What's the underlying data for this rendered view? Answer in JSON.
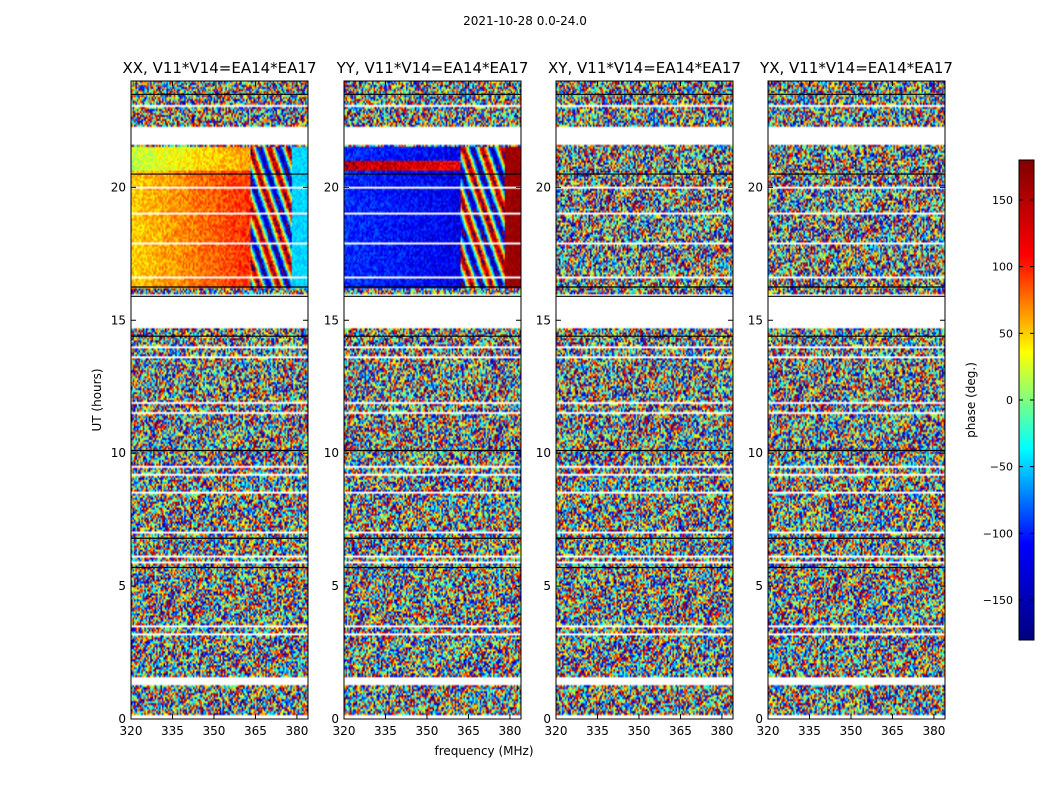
{
  "chart_data": {
    "type": "heatmap",
    "suptitle": "2021-10-28 0.0-24.0",
    "xlabel": "frequency (MHz)",
    "ylabel": "UT (hours)",
    "xlim": [
      320,
      384
    ],
    "ylim": [
      0,
      24
    ],
    "xticks": [
      320,
      335,
      350,
      365,
      380
    ],
    "yticks": [
      0,
      5,
      10,
      15,
      20
    ],
    "colorbar": {
      "label": "phase (deg.)",
      "range": [
        -180,
        180
      ],
      "ticks": [
        150,
        100,
        50,
        0,
        -50,
        -100,
        -150
      ],
      "tick_labels": [
        "150",
        "100",
        "50",
        "0",
        "−50",
        "−100",
        "−150"
      ],
      "colormap": "jet",
      "stops": [
        "#00007f",
        "#0000ff",
        "#00ffff",
        "#ffff00",
        "#ff0000",
        "#7f0000"
      ]
    },
    "panels": [
      {
        "title": "XX, V11*V14=EA14*EA17",
        "signal": "coherent-warm",
        "coherent_band_hours": [
          16.2,
          21.5
        ],
        "coherent_fmax": 363
      },
      {
        "title": "YY, V11*V14=EA14*EA17",
        "signal": "coherent-cool",
        "coherent_band_hours": [
          16.2,
          21.5
        ],
        "coherent_fmax": 362
      },
      {
        "title": "XY, V11*V14=EA14*EA17",
        "signal": "noise"
      },
      {
        "title": "YX, V11*V14=EA14*EA17",
        "signal": "noise"
      }
    ],
    "blank_gaps_hours": [
      [
        0.0,
        0.15
      ],
      [
        1.3,
        1.55
      ],
      [
        14.7,
        16.0
      ],
      [
        21.6,
        22.3
      ],
      [
        23.0,
        23.1
      ]
    ],
    "dark_lines_hours": [
      6.8,
      5.7,
      10.1,
      14.4,
      15.9,
      16.25,
      20.5,
      23.5
    ],
    "white_lines_hours": [
      2.4,
      3.2,
      3.5,
      4.8,
      5.9,
      6.1,
      7.0,
      7.8,
      8.5,
      9.2,
      9.5,
      11.1,
      11.5,
      11.9,
      12.6,
      13.2,
      13.6,
      14.0,
      16.6,
      17.9,
      19.0,
      20.0,
      21.0,
      22.8,
      23.4
    ]
  }
}
